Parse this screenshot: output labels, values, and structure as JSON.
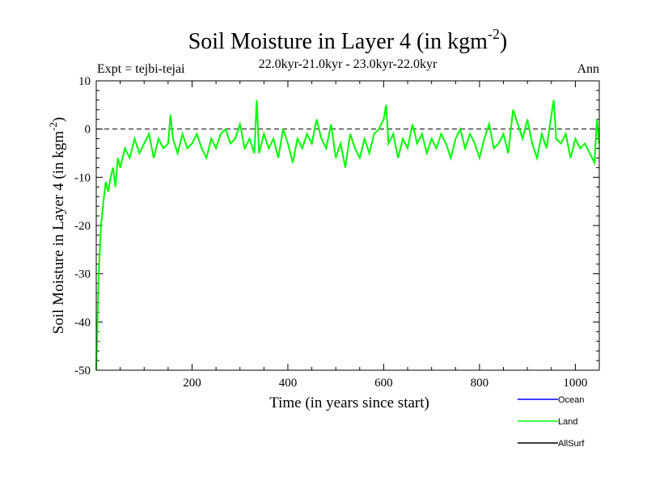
{
  "chart_data": {
    "type": "line",
    "title_main": "Soil Moisture in Layer 4 (in kgm",
    "title_sup": "-2",
    "title_close": ")",
    "subtitle": "22.0kyr-21.0kyr - 23.0kyr-22.0kyr",
    "expt_label": "Expt = tejbi-tejai",
    "season_label": "Ann",
    "xlabel": "Time (in years since start)",
    "ylabel_main": "Soil Moisture in Layer 4 (in kgm",
    "ylabel_sup": "-2",
    "ylabel_close": ")",
    "xlim": [
      0,
      1050
    ],
    "ylim": [
      -50,
      10
    ],
    "x_ticks": [
      200,
      400,
      600,
      800,
      1000
    ],
    "y_ticks": [
      10,
      0,
      -10,
      -20,
      -30,
      -40,
      -50
    ],
    "x_tick_labels": [
      "200",
      "400",
      "600",
      "800",
      "1000"
    ],
    "y_tick_labels": [
      "10",
      "0",
      "-10",
      "-20",
      "-30",
      "-40",
      "-50"
    ],
    "zero_line": {
      "y": 0,
      "style": "dashed"
    },
    "legend": [
      {
        "name": "Ocean",
        "color": "#0000ff"
      },
      {
        "name": "Land",
        "color": "#00ff00"
      },
      {
        "name": "AllSurf",
        "color": "#000000"
      }
    ],
    "series": [
      {
        "name": "Land",
        "color": "#00ff00",
        "x": [
          0,
          5,
          10,
          15,
          20,
          25,
          30,
          35,
          40,
          45,
          50,
          60,
          70,
          80,
          90,
          100,
          110,
          120,
          130,
          140,
          150,
          155,
          160,
          170,
          180,
          190,
          200,
          210,
          220,
          230,
          240,
          250,
          260,
          270,
          280,
          290,
          300,
          310,
          320,
          330,
          335,
          340,
          350,
          360,
          370,
          380,
          390,
          400,
          410,
          420,
          430,
          440,
          450,
          460,
          470,
          480,
          490,
          500,
          510,
          520,
          530,
          540,
          550,
          560,
          570,
          580,
          590,
          600,
          605,
          610,
          620,
          630,
          640,
          650,
          660,
          670,
          680,
          690,
          700,
          710,
          720,
          730,
          740,
          750,
          760,
          770,
          780,
          790,
          800,
          810,
          820,
          830,
          840,
          850,
          860,
          870,
          880,
          890,
          900,
          910,
          920,
          930,
          940,
          950,
          955,
          960,
          970,
          980,
          990,
          1000,
          1010,
          1020,
          1030,
          1040,
          1045,
          1050
        ],
        "values": [
          -50,
          -30,
          -20,
          -15,
          -11,
          -13,
          -10,
          -8,
          -12,
          -6,
          -8,
          -4,
          -6,
          -2,
          -5,
          -3,
          -1,
          -6,
          -2,
          -4,
          -3,
          3,
          -2,
          -5,
          -1,
          -4,
          -3,
          -1,
          -4,
          -6,
          -2,
          -4,
          -1,
          0,
          -3,
          -2,
          1,
          -4,
          -2,
          -5,
          6,
          -5,
          -1,
          -4,
          -2,
          -6,
          0,
          -3,
          -7,
          -2,
          -4,
          -1,
          -3,
          2,
          -2,
          -4,
          1,
          -6,
          -3,
          -8,
          -1,
          -4,
          -6,
          -2,
          -5,
          -1,
          0,
          2,
          5,
          -3,
          -1,
          -6,
          -2,
          -4,
          1,
          -3,
          -1,
          -5,
          -2,
          -4,
          -1,
          -3,
          -6,
          -2,
          0,
          -4,
          -1,
          -3,
          -6,
          -2,
          1,
          -4,
          -3,
          -1,
          -5,
          4,
          1,
          -2,
          2,
          -3,
          -6,
          -1,
          -4,
          3,
          6,
          -2,
          -3,
          -1,
          -6,
          -2,
          -4,
          -3,
          -5,
          -7,
          2,
          -3
        ]
      }
    ]
  }
}
